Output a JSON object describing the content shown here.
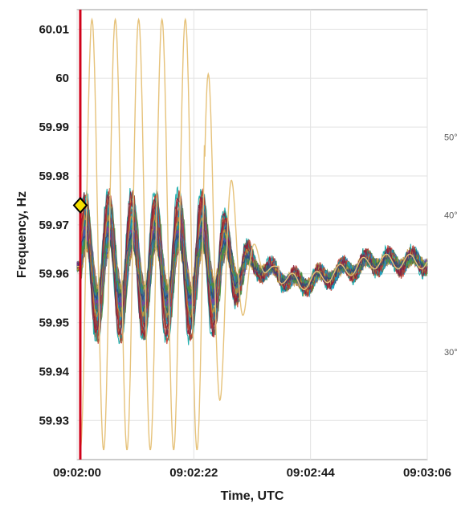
{
  "chart_data": {
    "type": "line",
    "xlabel": "Time, UTC",
    "ylabel": "Frequency, Hz",
    "x_ticks": [
      "09:02:00",
      "09:02:22",
      "09:02:44",
      "09:03:06"
    ],
    "x_tick_seconds": [
      0,
      22,
      44,
      66
    ],
    "xlim_seconds": [
      0,
      66
    ],
    "y_ticks": [
      59.93,
      59.94,
      59.95,
      59.96,
      59.97,
      59.98,
      59.99,
      60,
      60.01
    ],
    "y_tick_labels": [
      "59.93",
      "59.94",
      "59.95",
      "59.96",
      "59.97",
      "59.98",
      "59.99",
      "60",
      "60.01"
    ],
    "ylim": [
      59.922,
      60.014
    ],
    "right_ticks": [
      "50",
      "40",
      "30"
    ],
    "right_tick_values": [
      59.988,
      59.972,
      59.944
    ],
    "grid": true,
    "event_line": {
      "x_seconds": 0.6,
      "color": "#d0021b"
    },
    "marker": {
      "x_seconds": 0.6,
      "y": 59.974,
      "color": "#f5e000"
    },
    "series_summary": {
      "count": 48,
      "baseline_hz": 59.9615,
      "oscillation_period_s": 4.4,
      "large_oscillation_series": {
        "color": "#e6c27a",
        "peak_hz": 60.012,
        "trough_hz": 59.924,
        "end_seconds": 28
      }
    },
    "colors": [
      "#2f6fb0",
      "#17a2c8",
      "#c0392b",
      "#7b3fa0",
      "#4a8f3a",
      "#c49a3a",
      "#8b1a3a",
      "#2a4a7a",
      "#00a3a3",
      "#6a6a6a"
    ]
  }
}
